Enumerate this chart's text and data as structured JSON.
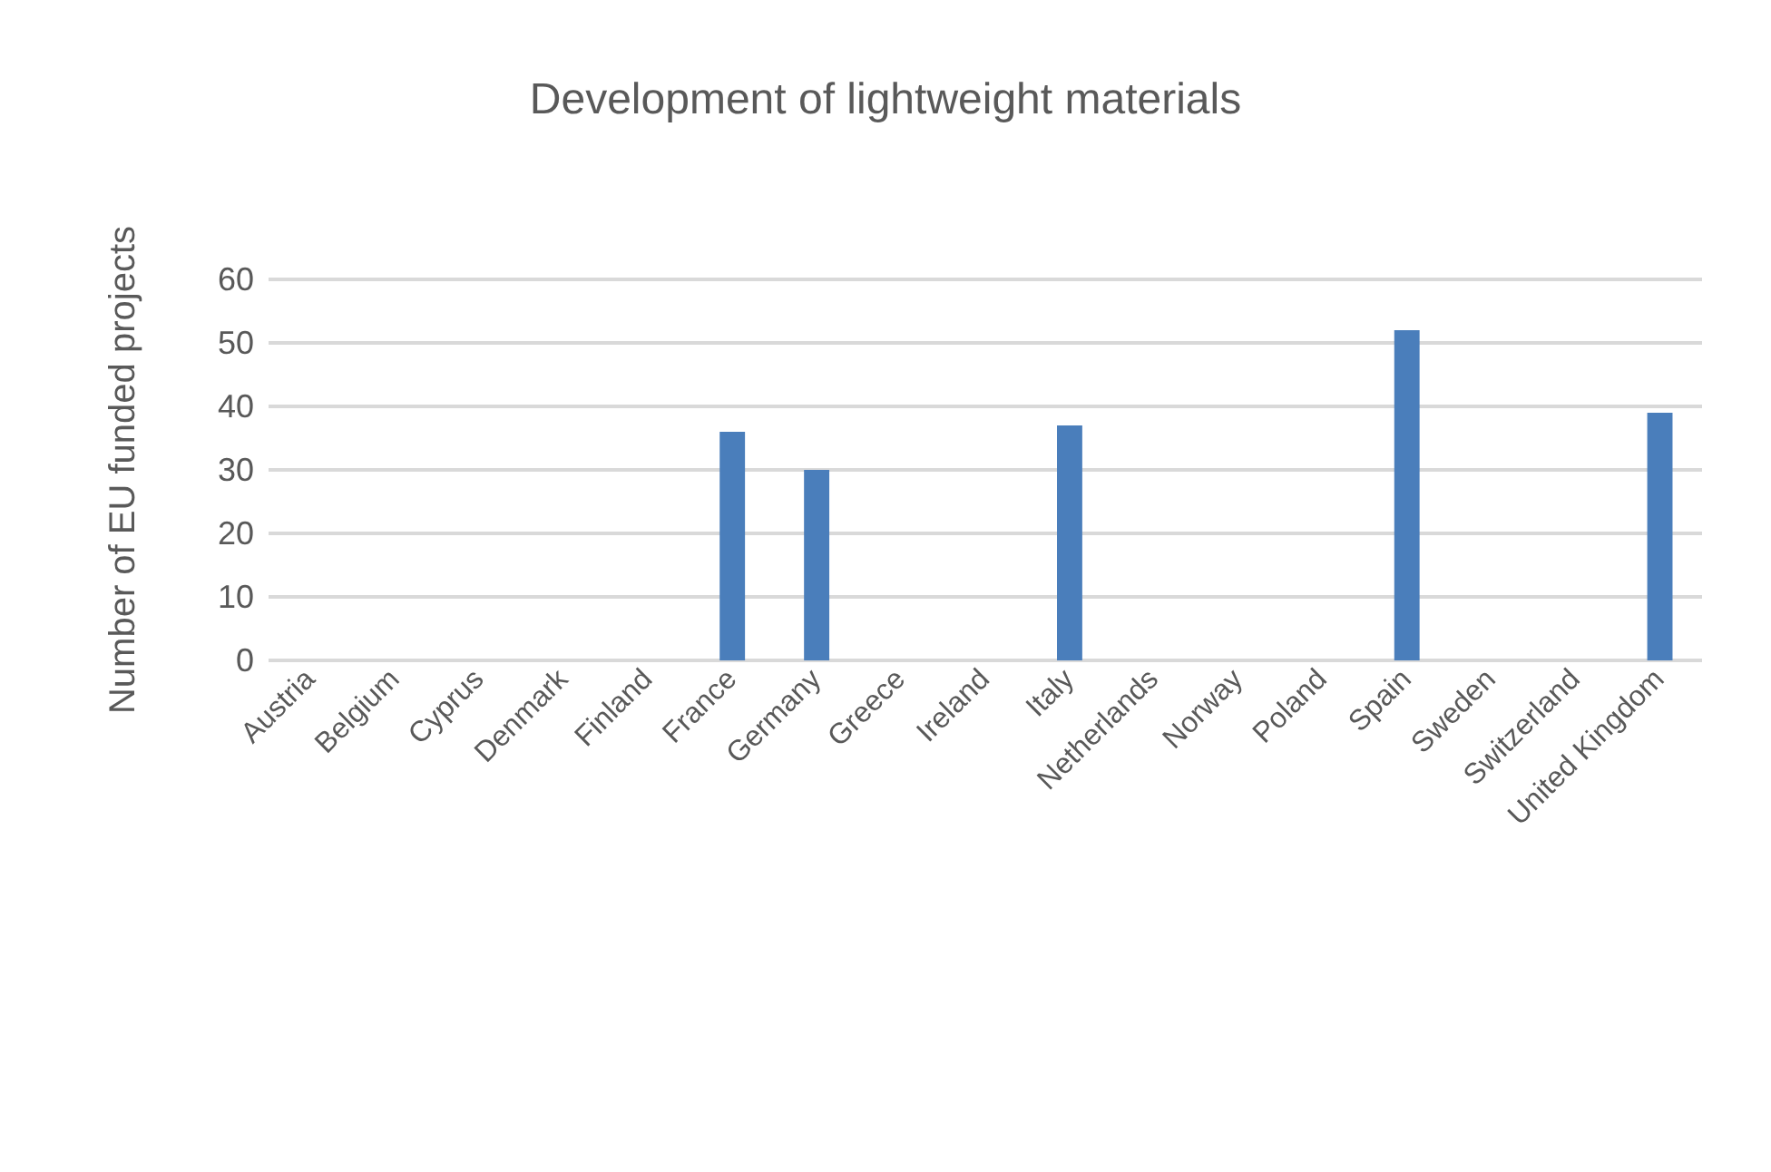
{
  "chart_data": {
    "type": "bar",
    "title": "Development of lightweight materials",
    "ylabel": "Number of EU funded projects",
    "categories": [
      "Austria",
      "Belgium",
      "Cyprus",
      "Denmark",
      "Finland",
      "France",
      "Germany",
      "Greece",
      "Ireland",
      "Italy",
      "Netherlands",
      "Norway",
      "Poland",
      "Spain",
      "Sweden",
      "Switzerland",
      "United Kingdom"
    ],
    "values": [
      0,
      0,
      0,
      0,
      0,
      36,
      30,
      0,
      0,
      37,
      0,
      0,
      0,
      52,
      0,
      0,
      39
    ],
    "color": "#4a7ebb",
    "ylim": [
      0,
      60
    ],
    "yticks": [
      0,
      10,
      20,
      30,
      40,
      50,
      60
    ],
    "grid": "y"
  }
}
